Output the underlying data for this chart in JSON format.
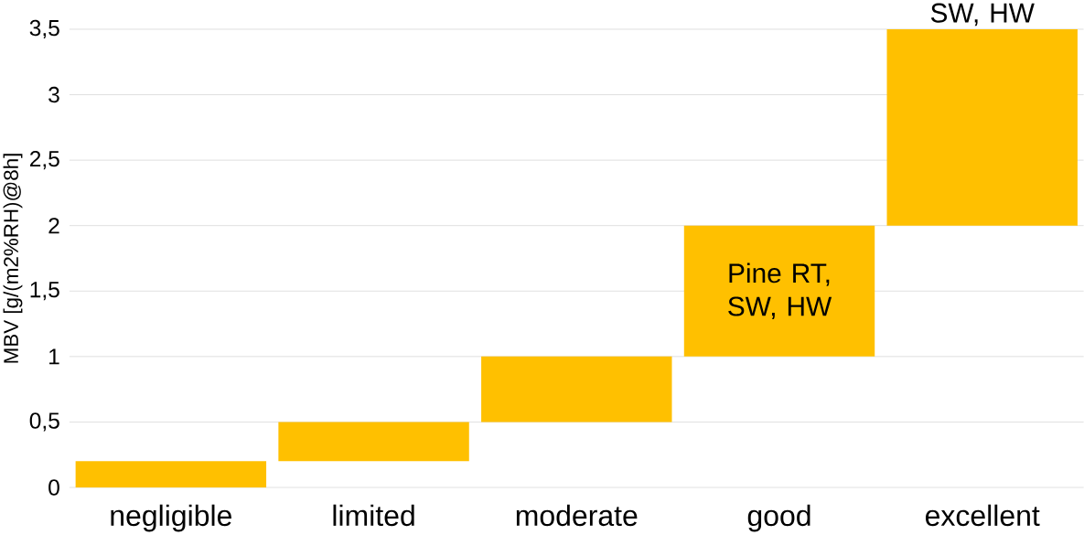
{
  "chart_data": {
    "type": "bar",
    "ylabel": "MBV [g/(m2%RH)@8h]",
    "categories": [
      "negligible",
      "limited",
      "moderate",
      "good",
      "excellent"
    ],
    "base": [
      0,
      0.2,
      0.5,
      1,
      2
    ],
    "values": [
      0.2,
      0.3,
      0.5,
      1,
      1.5
    ],
    "color": "#ffc000",
    "ylim": [
      0,
      3.5
    ],
    "yticks": [
      0,
      {
        "value": 0.5,
        "label": "0,5"
      },
      1,
      {
        "value": 1.5,
        "label": "1,5"
      },
      2,
      {
        "value": 2.5,
        "label": "2,5"
      },
      3,
      {
        "value": 3.5,
        "label": "3,5"
      }
    ],
    "grid": "y",
    "annotations": [
      "Pine RT, SW, HW",
      "SW, HW"
    ]
  }
}
